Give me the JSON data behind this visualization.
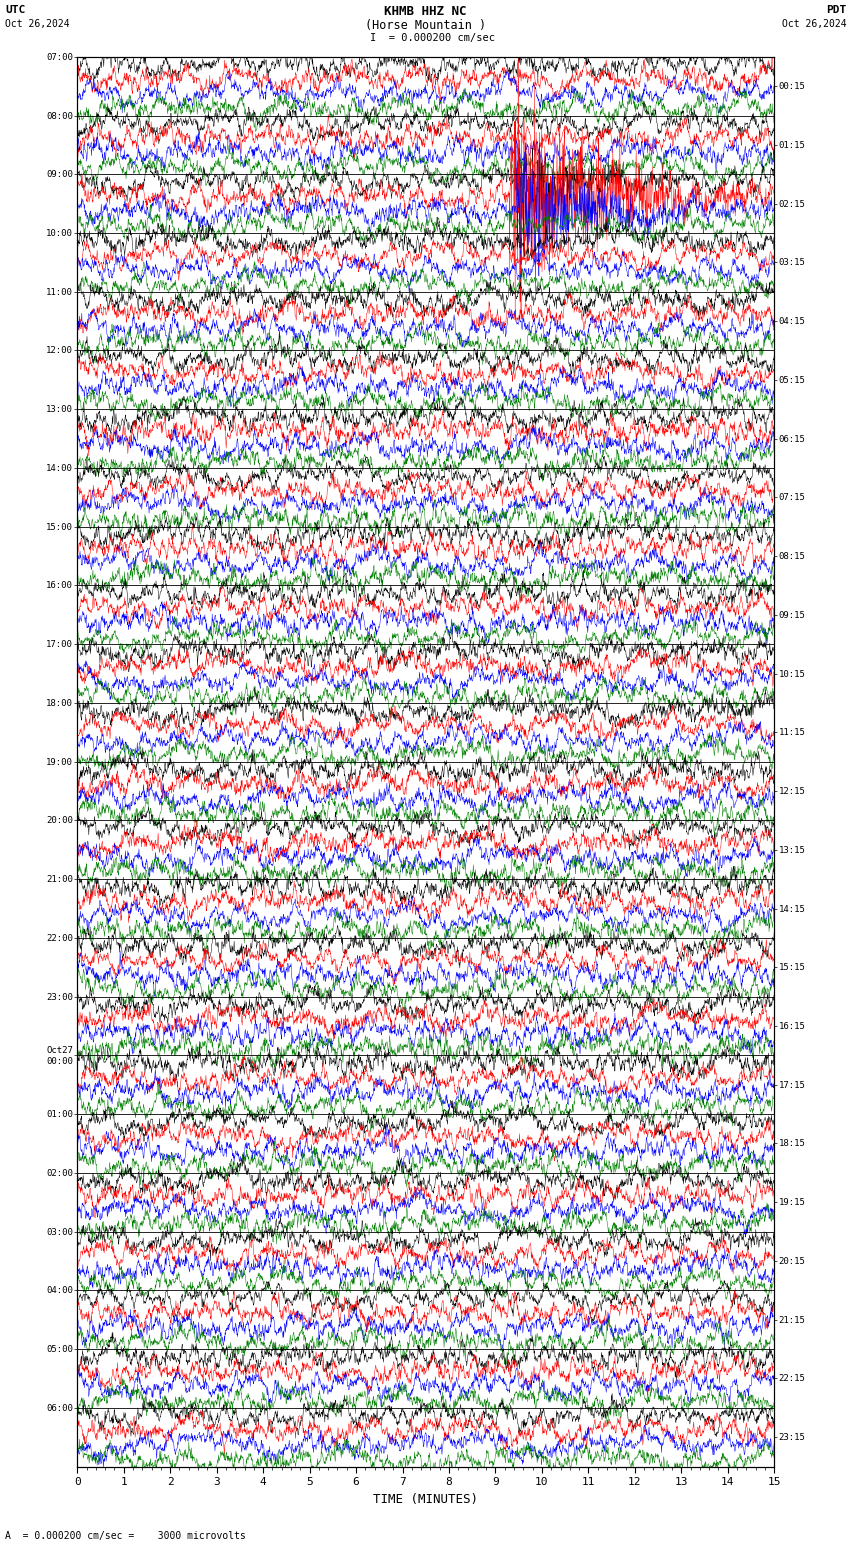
{
  "title_line1": "KHMB HHZ NC",
  "title_line2": "(Horse Mountain )",
  "scale_label": "= 0.000200 cm/sec",
  "utc_label": "UTC",
  "pdt_label": "PDT",
  "date_left": "Oct 26,2024",
  "date_right": "Oct 26,2024",
  "bottom_label": "A  = 0.000200 cm/sec =    3000 microvolts",
  "xlabel": "TIME (MINUTES)",
  "x_ticks": [
    0,
    1,
    2,
    3,
    4,
    5,
    6,
    7,
    8,
    9,
    10,
    11,
    12,
    13,
    14,
    15
  ],
  "left_times": [
    "07:00",
    "08:00",
    "09:00",
    "10:00",
    "11:00",
    "12:00",
    "13:00",
    "14:00",
    "15:00",
    "16:00",
    "17:00",
    "18:00",
    "19:00",
    "20:00",
    "21:00",
    "22:00",
    "23:00",
    "Oct27\n00:00",
    "01:00",
    "02:00",
    "03:00",
    "04:00",
    "05:00",
    "06:00"
  ],
  "right_times": [
    "00:15",
    "01:15",
    "02:15",
    "03:15",
    "04:15",
    "05:15",
    "06:15",
    "07:15",
    "08:15",
    "09:15",
    "10:15",
    "11:15",
    "12:15",
    "13:15",
    "14:15",
    "15:15",
    "16:15",
    "17:15",
    "18:15",
    "19:15",
    "20:15",
    "21:15",
    "22:15",
    "23:15"
  ],
  "n_rows": 24,
  "traces_per_row": 4,
  "colors": [
    "black",
    "red",
    "blue",
    "green"
  ],
  "bg_color": "white",
  "n_samples": 2000,
  "fig_width": 8.5,
  "fig_height": 15.84
}
